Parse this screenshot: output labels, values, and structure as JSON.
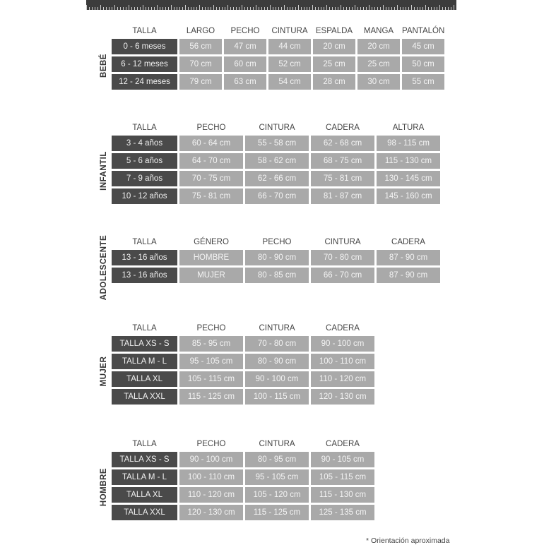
{
  "note": "* Orientación aproximada",
  "sections": [
    {
      "label": "BEBÉ",
      "headers": [
        "TALLA",
        "LARGO",
        "PECHO",
        "CINTURA",
        "ESPALDA",
        "MANGA",
        "PANTALÓN"
      ],
      "rows": [
        [
          "0 - 6 meses",
          "56 cm",
          "47 cm",
          "44 cm",
          "20 cm",
          "20 cm",
          "45 cm"
        ],
        [
          "6 - 12 meses",
          "70 cm",
          "60 cm",
          "52 cm",
          "25 cm",
          "25 cm",
          "50 cm"
        ],
        [
          "12 - 24 meses",
          "79 cm",
          "63 cm",
          "54 cm",
          "28 cm",
          "30 cm",
          "55 cm"
        ]
      ]
    },
    {
      "label": "INFANTIL",
      "headers": [
        "TALLA",
        "PECHO",
        "CINTURA",
        "CADERA",
        "ALTURA"
      ],
      "rows": [
        [
          "3 - 4 años",
          "60 - 64 cm",
          "55 - 58 cm",
          "62 - 68 cm",
          "98 - 115 cm"
        ],
        [
          "5 - 6 años",
          "64 - 70 cm",
          "58 - 62 cm",
          "68 - 75 cm",
          "115 - 130 cm"
        ],
        [
          "7 - 9 años",
          "70 - 75 cm",
          "62 - 66 cm",
          "75 - 81 cm",
          "130 - 145 cm"
        ],
        [
          "10 - 12 años",
          "75 - 81 cm",
          "66 - 70 cm",
          "81 - 87 cm",
          "145 - 160 cm"
        ]
      ]
    },
    {
      "label": "ADOLESCENTE",
      "headers": [
        "TALLA",
        "GÉNERO",
        "PECHO",
        "CINTURA",
        "CADERA"
      ],
      "rows": [
        [
          "13 - 16 años",
          "HOMBRE",
          "80 - 90 cm",
          "70 - 80 cm",
          "87 - 90 cm"
        ],
        [
          "13 - 16 años",
          "MUJER",
          "80 - 85 cm",
          "66 - 70 cm",
          "87 - 90 cm"
        ]
      ]
    },
    {
      "label": "MUJER",
      "headers": [
        "TALLA",
        "PECHO",
        "CINTURA",
        "CADERA"
      ],
      "rows": [
        [
          "TALLA XS - S",
          "85 - 95 cm",
          "70 - 80 cm",
          "90 - 100 cm"
        ],
        [
          "TALLA M - L",
          "95 - 105 cm",
          "80 - 90 cm",
          "100 - 110 cm"
        ],
        [
          "TALLA XL",
          "105 - 115 cm",
          "90 - 100 cm",
          "110 - 120 cm"
        ],
        [
          "TALLA XXL",
          "115 - 125 cm",
          "100 - 115 cm",
          "120 - 130 cm"
        ]
      ]
    },
    {
      "label": "HOMBRE",
      "headers": [
        "TALLA",
        "PECHO",
        "CINTURA",
        "CADERA"
      ],
      "rows": [
        [
          "TALLA XS - S",
          "90 - 100 cm",
          "80 - 95 cm",
          "90 - 105 cm"
        ],
        [
          "TALLA M - L",
          "100 - 110 cm",
          "95 - 105 cm",
          "105 - 115 cm"
        ],
        [
          "TALLA XL",
          "110 - 120 cm",
          "105 - 120 cm",
          "115 - 130 cm"
        ],
        [
          "TALLA XXL",
          "120 - 130 cm",
          "115 - 125 cm",
          "125 - 135 cm"
        ]
      ]
    }
  ]
}
